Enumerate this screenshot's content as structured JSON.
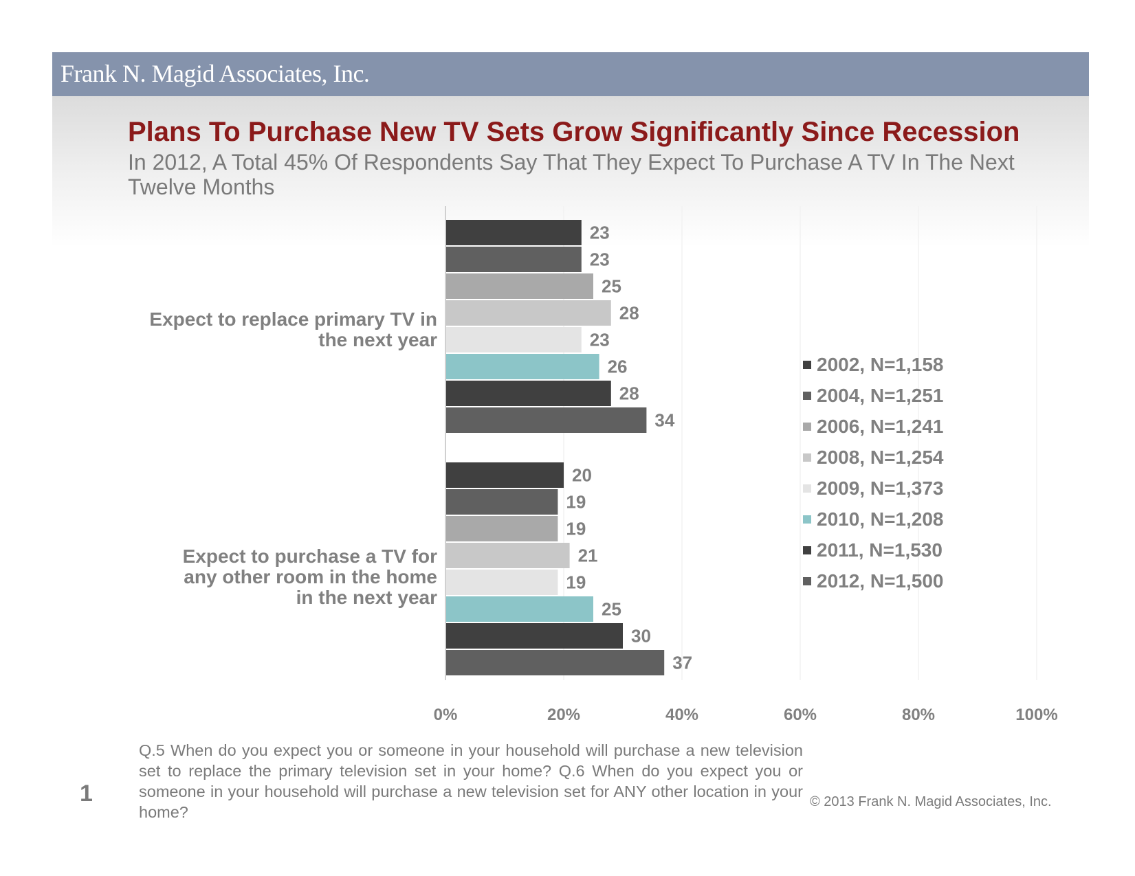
{
  "header": {
    "brand": "Frank N. Magid Associates, Inc."
  },
  "slide": {
    "title": "Plans To Purchase New TV Sets Grow Significantly Since Recession",
    "subtitle": "In 2012, A Total 45% Of Respondents Say That They Expect To Purchase A TV In The Next Twelve Months",
    "footnote": "Q.5 When do you expect you or someone in your household will purchase a new television set to replace the primary television set in your home?  Q.6 When do you expect you or someone in your household will purchase a new television set for ANY other location in your home?",
    "page_number": "1",
    "copyright": "© 2013 Frank N. Magid Associates, Inc."
  },
  "chart_data": {
    "type": "bar",
    "orientation": "horizontal",
    "categories": [
      "Expect to replace primary TV in the next year",
      "Expect to purchase a TV for any other room in the home in the next year"
    ],
    "series": [
      {
        "name": "2002, N=1,158",
        "color": "#404040",
        "values": [
          23,
          20
        ]
      },
      {
        "name": "2004, N=1,251",
        "color": "#606060",
        "values": [
          23,
          19
        ]
      },
      {
        "name": "2006, N=1,241",
        "color": "#a9a9a9",
        "values": [
          25,
          19
        ]
      },
      {
        "name": "2008, N=1,254",
        "color": "#c8c8c8",
        "values": [
          28,
          21
        ]
      },
      {
        "name": "2009, N=1,373",
        "color": "#e4e4e4",
        "values": [
          23,
          19
        ]
      },
      {
        "name": "2010, N=1,208",
        "color": "#8cc5c8",
        "values": [
          26,
          25
        ]
      },
      {
        "name": "2011, N=1,530",
        "color": "#404040",
        "values": [
          28,
          30
        ]
      },
      {
        "name": "2012, N=1,500",
        "color": "#606060",
        "values": [
          34,
          37
        ]
      }
    ],
    "x_ticks": [
      "0%",
      "20%",
      "40%",
      "60%",
      "80%",
      "100%"
    ],
    "xlim": [
      0,
      100
    ],
    "grid": true,
    "legend_position": "right"
  }
}
